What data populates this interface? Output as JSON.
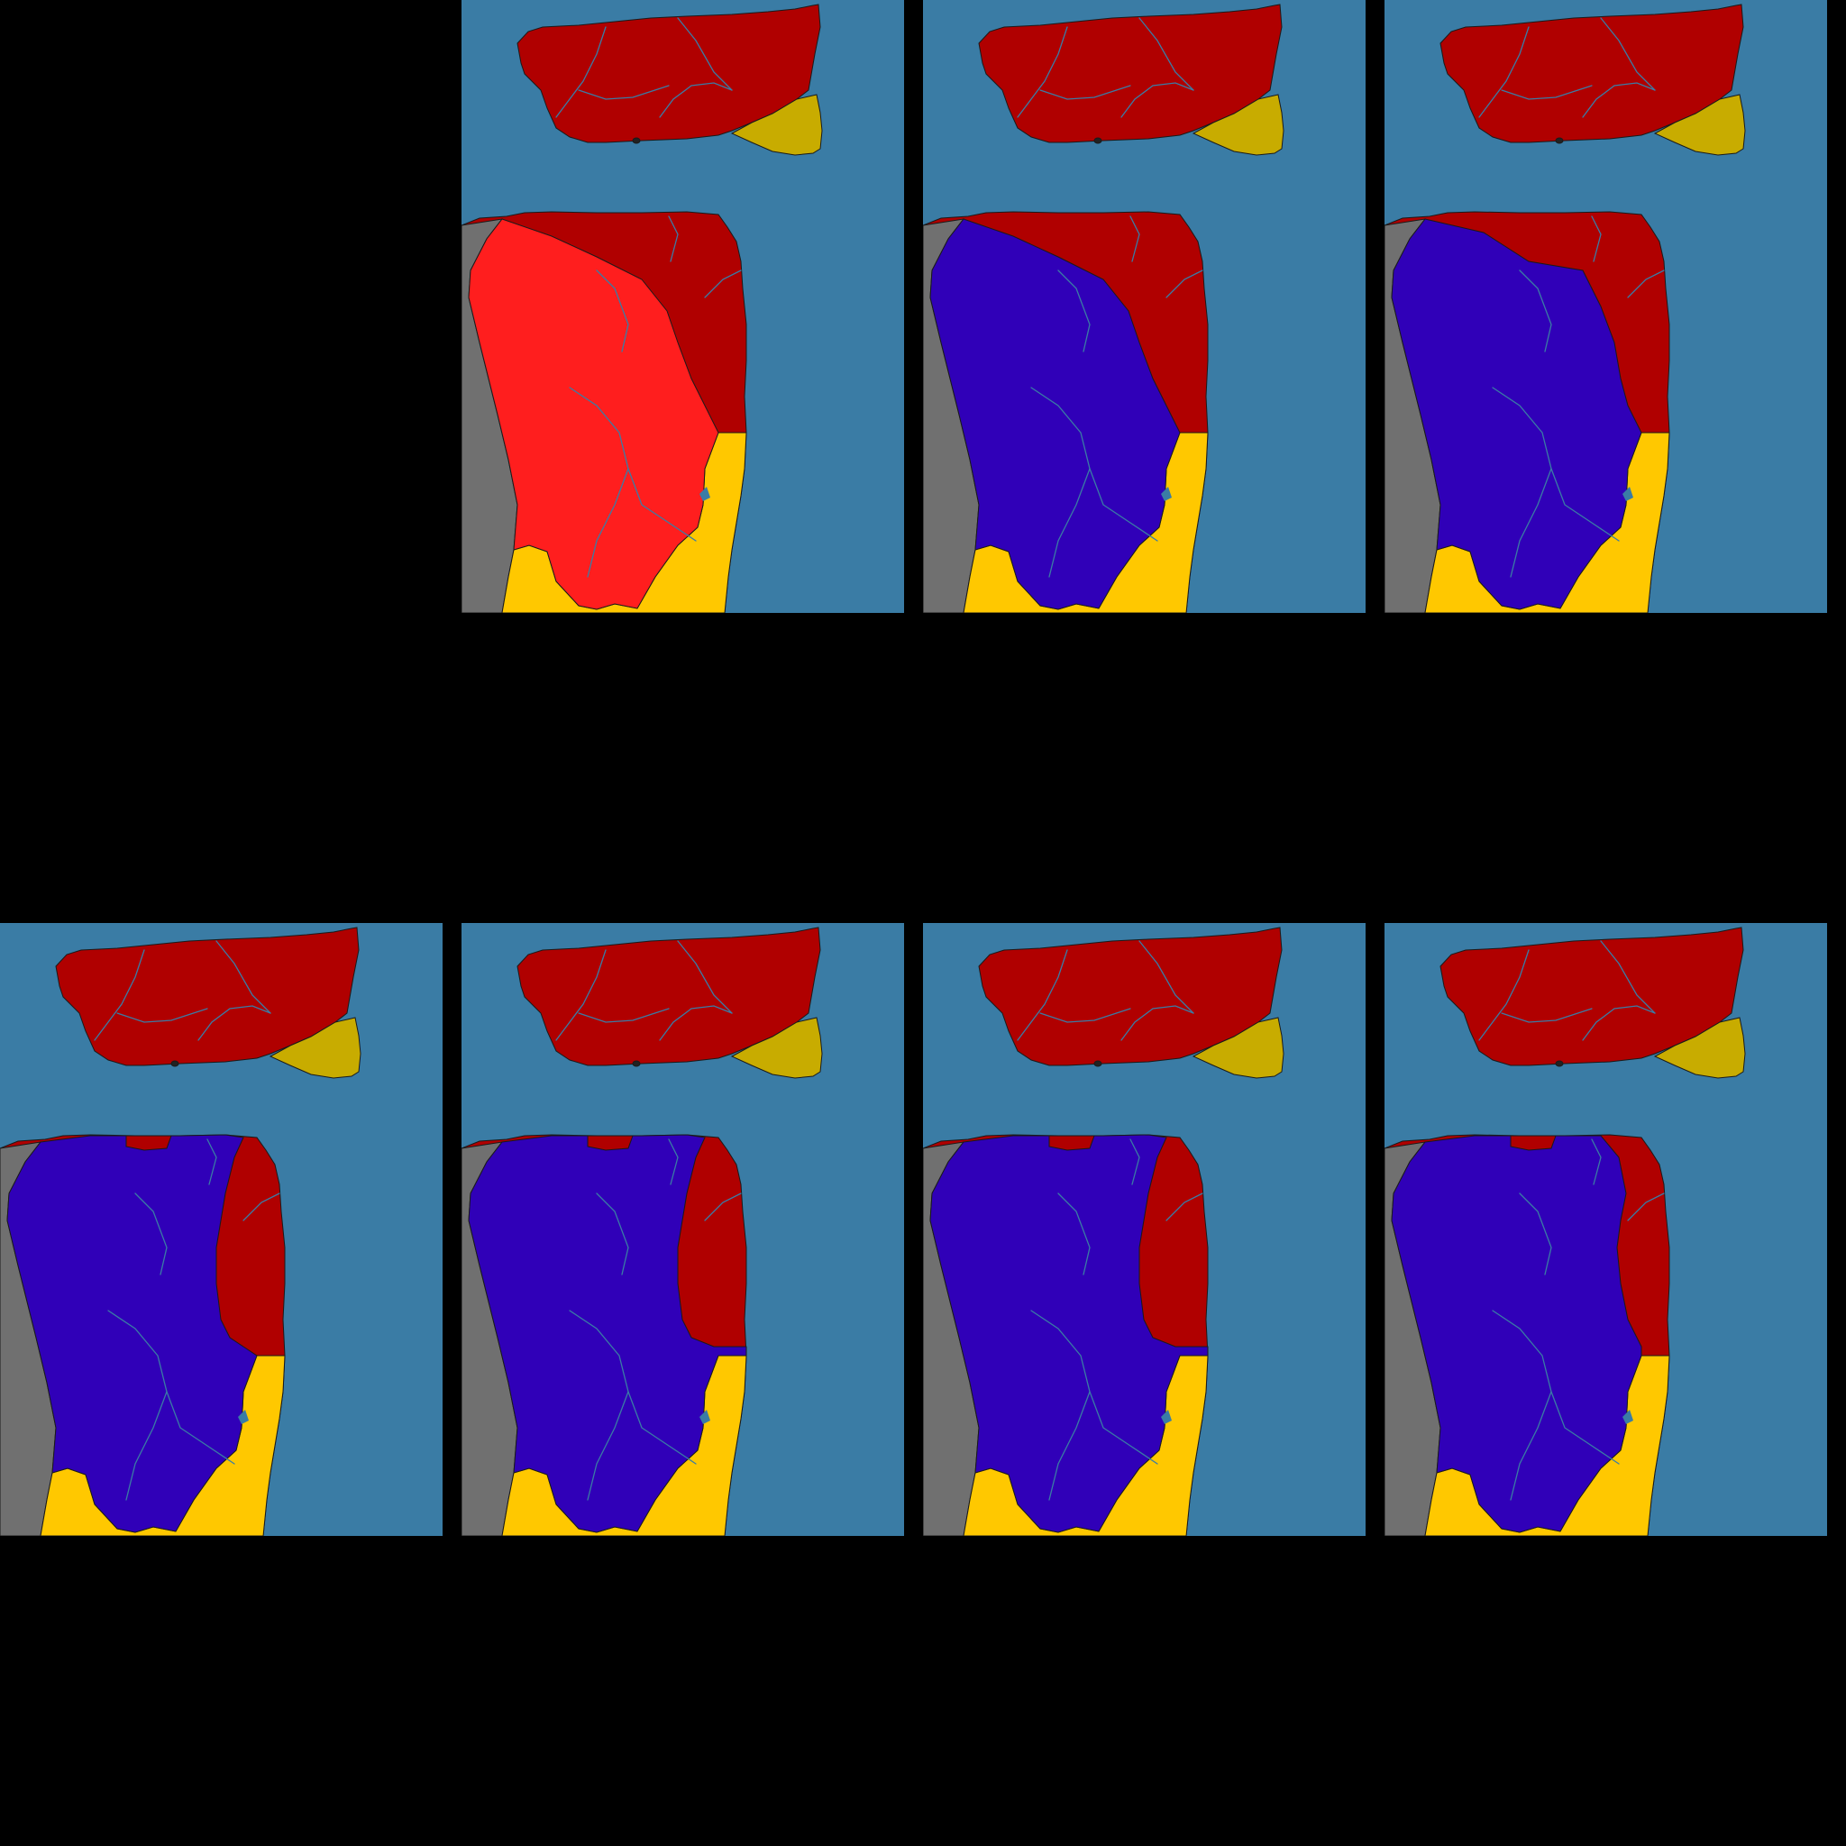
{
  "map_series": {
    "colors": {
      "sea": "#3a7ca5",
      "neutral_land": "#707070",
      "dark_red": "#b00000",
      "bright_red": "#ff1e1e",
      "blue": "#3000b8",
      "yellow": "#ffc800",
      "dark_yellow": "#c8ac00",
      "river": "#3a7ca5"
    },
    "panels": [
      {
        "id": "map-frame-1",
        "south_main_owner": "bright_red",
        "variant": "south-large"
      },
      {
        "id": "map-frame-2",
        "south_main_owner": "blue",
        "variant": "south-large"
      },
      {
        "id": "map-frame-3",
        "south_main_owner": "blue",
        "variant": "south-extended-north"
      },
      {
        "id": "map-frame-4",
        "south_main_owner": "blue",
        "variant": "south-north-coast"
      },
      {
        "id": "map-frame-5",
        "south_main_owner": "blue",
        "variant": "south-north-coast-east-gulf"
      },
      {
        "id": "map-frame-6",
        "south_main_owner": "blue",
        "variant": "south-north-coast-east-gulf"
      },
      {
        "id": "map-frame-7",
        "south_main_owner": "blue",
        "variant": "south-north-coast-wide"
      }
    ]
  }
}
